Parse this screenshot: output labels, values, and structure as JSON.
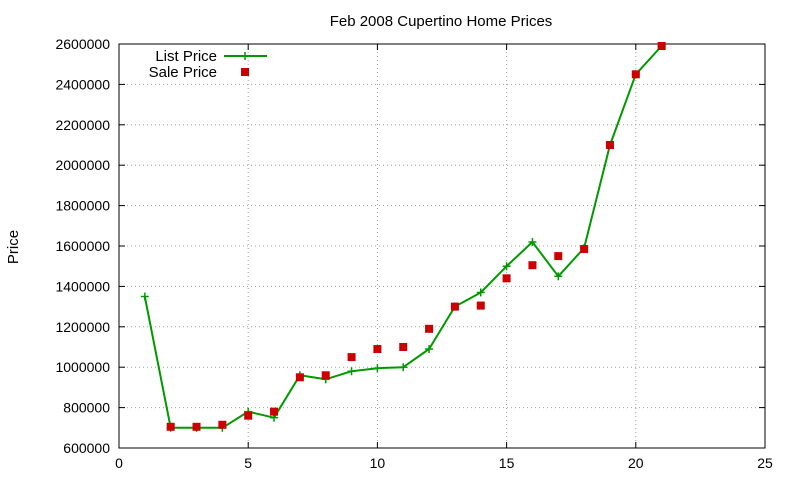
{
  "chart_data": {
    "type": "line",
    "title": "Feb 2008 Cupertino Home Prices",
    "xlabel": "",
    "ylabel": "Price",
    "xlim": [
      0,
      25
    ],
    "ylim": [
      600000,
      2600000
    ],
    "x_ticks": [
      "0",
      "5",
      "10",
      "15",
      "20",
      "25"
    ],
    "y_ticks": [
      "600000",
      "800000",
      "1000000",
      "1200000",
      "1400000",
      "1600000",
      "1800000",
      "2000000",
      "2200000",
      "2400000",
      "2600000"
    ],
    "grid": true,
    "legend_position": "top-left",
    "series": [
      {
        "name": "List Price",
        "style": "lines+points",
        "marker": "plus",
        "color": "#009900",
        "x": [
          1,
          2,
          3,
          4,
          5,
          6,
          7,
          8,
          9,
          10,
          11,
          12,
          13,
          14,
          15,
          16,
          17,
          18,
          19,
          20,
          21
        ],
        "y": [
          1350000,
          700000,
          700000,
          700000,
          780000,
          750000,
          960000,
          940000,
          980000,
          995000,
          1000000,
          1090000,
          1300000,
          1370000,
          1500000,
          1620000,
          1450000,
          1590000,
          2100000,
          2450000,
          2590000
        ]
      },
      {
        "name": "Sale Price",
        "style": "points",
        "marker": "square",
        "color": "#cc0000",
        "x": [
          2,
          3,
          4,
          5,
          6,
          7,
          8,
          9,
          10,
          11,
          12,
          13,
          14,
          15,
          16,
          17,
          18,
          19,
          20,
          21
        ],
        "y": [
          705000,
          705000,
          715000,
          760000,
          780000,
          950000,
          960000,
          1050000,
          1090000,
          1100000,
          1190000,
          1300000,
          1305000,
          1440000,
          1505000,
          1550000,
          1585000,
          2100000,
          2450000,
          2590000
        ]
      }
    ]
  }
}
